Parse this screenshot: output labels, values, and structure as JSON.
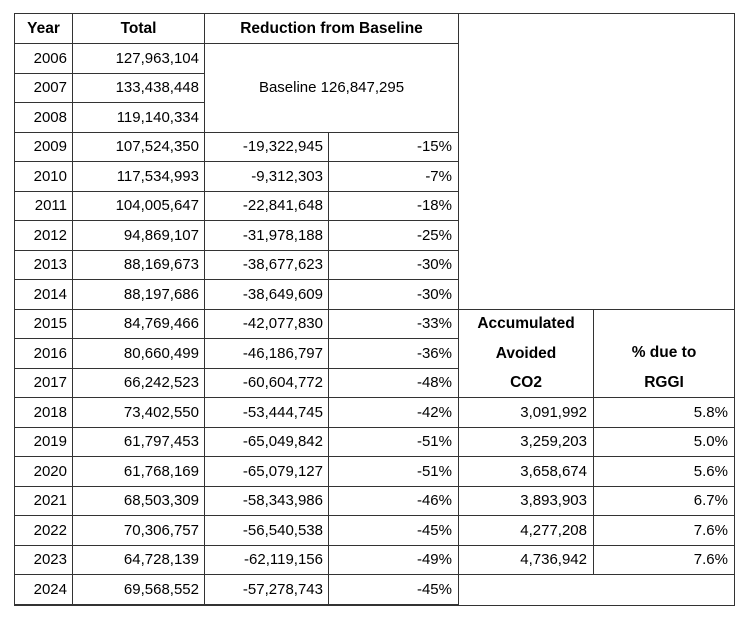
{
  "chart_data": {
    "type": "table",
    "headers": {
      "year": "Year",
      "total": "Total",
      "reduction": "Reduction from Baseline",
      "accumulated_line1": "Accumulated",
      "accumulated_line2": "Avoided",
      "accumulated_line3": "CO2",
      "rggi_line1": "% due to",
      "rggi_line2": "RGGI"
    },
    "baseline_label": "Baseline 126,847,295",
    "baseline_value": 126847295,
    "rows": [
      {
        "year": "2006",
        "total": "127,963,104",
        "reduction": "",
        "pct": "",
        "accumulated": "",
        "rggi": ""
      },
      {
        "year": "2007",
        "total": "133,438,448",
        "reduction": "",
        "pct": "",
        "accumulated": "",
        "rggi": ""
      },
      {
        "year": "2008",
        "total": "119,140,334",
        "reduction": "",
        "pct": "",
        "accumulated": "",
        "rggi": ""
      },
      {
        "year": "2009",
        "total": "107,524,350",
        "reduction": "-19,322,945",
        "pct": "-15%",
        "accumulated": "",
        "rggi": ""
      },
      {
        "year": "2010",
        "total": "117,534,993",
        "reduction": "-9,312,303",
        "pct": "-7%",
        "accumulated": "",
        "rggi": ""
      },
      {
        "year": "2011",
        "total": "104,005,647",
        "reduction": "-22,841,648",
        "pct": "-18%",
        "accumulated": "",
        "rggi": ""
      },
      {
        "year": "2012",
        "total": "94,869,107",
        "reduction": "-31,978,188",
        "pct": "-25%",
        "accumulated": "",
        "rggi": ""
      },
      {
        "year": "2013",
        "total": "88,169,673",
        "reduction": "-38,677,623",
        "pct": "-30%",
        "accumulated": "",
        "rggi": ""
      },
      {
        "year": "2014",
        "total": "88,197,686",
        "reduction": "-38,649,609",
        "pct": "-30%",
        "accumulated": "",
        "rggi": ""
      },
      {
        "year": "2015",
        "total": "84,769,466",
        "reduction": "-42,077,830",
        "pct": "-33%",
        "accumulated": "",
        "rggi": ""
      },
      {
        "year": "2016",
        "total": "80,660,499",
        "reduction": "-46,186,797",
        "pct": "-36%",
        "accumulated": "",
        "rggi": ""
      },
      {
        "year": "2017",
        "total": "66,242,523",
        "reduction": "-60,604,772",
        "pct": "-48%",
        "accumulated": "",
        "rggi": ""
      },
      {
        "year": "2018",
        "total": "73,402,550",
        "reduction": "-53,444,745",
        "pct": "-42%",
        "accumulated": "3,091,992",
        "rggi": "5.8%"
      },
      {
        "year": "2019",
        "total": "61,797,453",
        "reduction": "-65,049,842",
        "pct": "-51%",
        "accumulated": "3,259,203",
        "rggi": "5.0%"
      },
      {
        "year": "2020",
        "total": "61,768,169",
        "reduction": "-65,079,127",
        "pct": "-51%",
        "accumulated": "3,658,674",
        "rggi": "5.6%"
      },
      {
        "year": "2021",
        "total": "68,503,309",
        "reduction": "-58,343,986",
        "pct": "-46%",
        "accumulated": "3,893,903",
        "rggi": "6.7%"
      },
      {
        "year": "2022",
        "total": "70,306,757",
        "reduction": "-56,540,538",
        "pct": "-45%",
        "accumulated": "4,277,208",
        "rggi": "7.6%"
      },
      {
        "year": "2023",
        "total": "64,728,139",
        "reduction": "-62,119,156",
        "pct": "-49%",
        "accumulated": "4,736,942",
        "rggi": "7.6%"
      },
      {
        "year": "2024",
        "total": "69,568,552",
        "reduction": "-57,278,743",
        "pct": "-45%",
        "accumulated": "",
        "rggi": ""
      }
    ]
  },
  "colors": {
    "border": "#333333",
    "text": "#000000",
    "background": "#ffffff"
  }
}
